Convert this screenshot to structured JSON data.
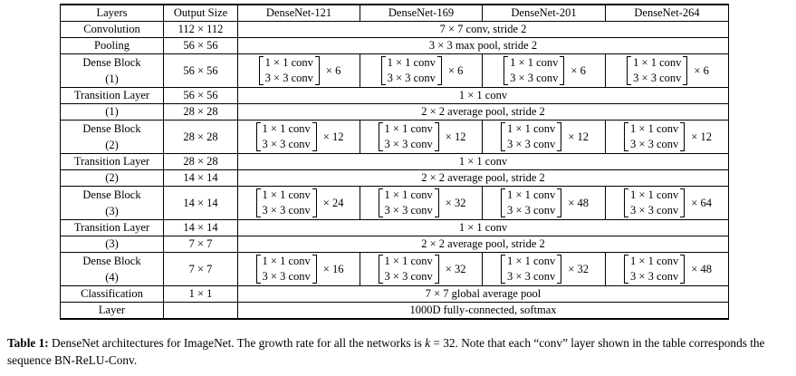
{
  "header": {
    "layers": "Layers",
    "output_size": "Output Size",
    "nets": [
      "DenseNet-121",
      "DenseNet-169",
      "DenseNet-201",
      "DenseNet-264"
    ]
  },
  "rows": {
    "convolution": {
      "label": "Convolution",
      "size": "112 × 112",
      "desc": "7 × 7 conv, stride 2"
    },
    "pooling": {
      "label": "Pooling",
      "size": "56 × 56",
      "desc": "3 × 3 max pool, stride 2"
    },
    "block1": {
      "label": "Dense Block",
      "index": "(1)",
      "size": "56 × 56",
      "mults": [
        "× 6",
        "× 6",
        "× 6",
        "× 6"
      ]
    },
    "trans1": {
      "label": "Transition Layer",
      "index": "(1)",
      "size_conv": "56 × 56",
      "size_pool": "28 × 28",
      "conv": "1 × 1 conv",
      "pool": "2 × 2 average pool, stride 2"
    },
    "block2": {
      "label": "Dense Block",
      "index": "(2)",
      "size": "28 × 28",
      "mults": [
        "× 12",
        "× 12",
        "× 12",
        "× 12"
      ]
    },
    "trans2": {
      "label": "Transition Layer",
      "index": "(2)",
      "size_conv": "28 × 28",
      "size_pool": "14 × 14",
      "conv": "1 × 1 conv",
      "pool": "2 × 2 average pool, stride 2"
    },
    "block3": {
      "label": "Dense Block",
      "index": "(3)",
      "size": "14 × 14",
      "mults": [
        "× 24",
        "× 32",
        "× 48",
        "× 64"
      ]
    },
    "trans3": {
      "label": "Transition Layer",
      "index": "(3)",
      "size_conv": "14 × 14",
      "size_pool": "7 × 7",
      "conv": "1 × 1 conv",
      "pool": "2 × 2 average pool, stride 2"
    },
    "block4": {
      "label": "Dense Block",
      "index": "(4)",
      "size": "7 × 7",
      "mults": [
        "× 16",
        "× 32",
        "× 32",
        "× 48"
      ]
    },
    "classification": {
      "label": "Classification",
      "label2": "Layer",
      "size": "1 × 1",
      "pool": "7 × 7 global average pool",
      "fc": "1000D fully-connected, softmax"
    }
  },
  "block_ops": {
    "top": "1 × 1 conv",
    "bottom": "3 × 3 conv"
  },
  "caption": {
    "label": "Table 1:",
    "text_before_k": " DenseNet architectures for ImageNet. The growth rate for all the networks is ",
    "k_symbol": "k",
    "text_after_k": " = 32. Note that each “conv” layer shown in the table corresponds the sequence BN-ReLU-Conv."
  }
}
